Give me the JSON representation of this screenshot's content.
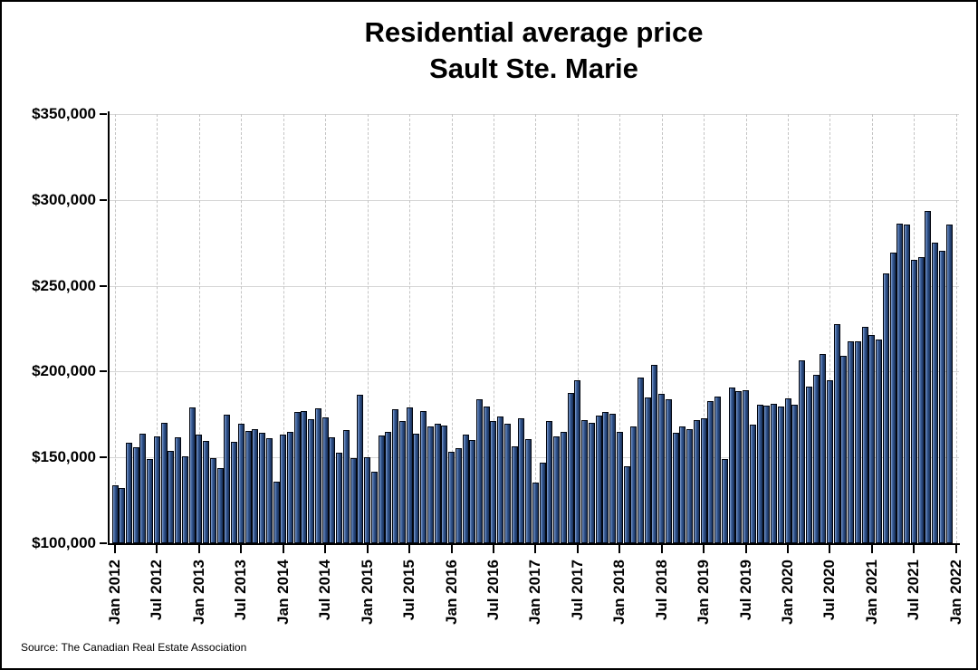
{
  "page": {
    "background": "#ffffff",
    "border_color": "#000000"
  },
  "title": {
    "line1": "Residential average price",
    "line2": "Sault Ste. Marie"
  },
  "source": "Source: The Canadian Real Estate Association",
  "chart_data": {
    "type": "bar",
    "title": "Residential average price — Sault Ste. Marie",
    "ylabel": "",
    "xlabel": "",
    "ylim": [
      100000,
      350000
    ],
    "ytick_step": 50000,
    "ytick_labels": [
      "$100,000",
      "$150,000",
      "$200,000",
      "$250,000",
      "$300,000",
      "$350,000"
    ],
    "xtick_labels": [
      "Jan 2012",
      "Jul 2012",
      "Jan 2013",
      "Jul 2013",
      "Jan 2014",
      "Jul 2014",
      "Jan 2015",
      "Jul 2015",
      "Jan 2016",
      "Jul 2016",
      "Jan 2017",
      "Jul 2017",
      "Jan 2018",
      "Jul 2018",
      "Jan 2019",
      "Jul 2019",
      "Jan 2020",
      "Jul 2020",
      "Jan 2021",
      "Jul 2021",
      "Jan 2022"
    ],
    "xtick_every_months": 6,
    "grid": {
      "horizontal": "solid-light-gray",
      "vertical": "dashed-light-gray"
    },
    "legend_position": "none",
    "bar_color": "#2c4a7e",
    "bar_edge_color": "#000000",
    "x": [
      "Jan 2012",
      "Feb 2012",
      "Mar 2012",
      "Apr 2012",
      "May 2012",
      "Jun 2012",
      "Jul 2012",
      "Aug 2012",
      "Sep 2012",
      "Oct 2012",
      "Nov 2012",
      "Dec 2012",
      "Jan 2013",
      "Feb 2013",
      "Mar 2013",
      "Apr 2013",
      "May 2013",
      "Jun 2013",
      "Jul 2013",
      "Aug 2013",
      "Sep 2013",
      "Oct 2013",
      "Nov 2013",
      "Dec 2013",
      "Jan 2014",
      "Feb 2014",
      "Mar 2014",
      "Apr 2014",
      "May 2014",
      "Jun 2014",
      "Jul 2014",
      "Aug 2014",
      "Sep 2014",
      "Oct 2014",
      "Nov 2014",
      "Dec 2014",
      "Jan 2015",
      "Feb 2015",
      "Mar 2015",
      "Apr 2015",
      "May 2015",
      "Jun 2015",
      "Jul 2015",
      "Aug 2015",
      "Sep 2015",
      "Oct 2015",
      "Nov 2015",
      "Dec 2015",
      "Jan 2016",
      "Feb 2016",
      "Mar 2016",
      "Apr 2016",
      "May 2016",
      "Jun 2016",
      "Jul 2016",
      "Aug 2016",
      "Sep 2016",
      "Oct 2016",
      "Nov 2016",
      "Dec 2016",
      "Jan 2017",
      "Feb 2017",
      "Mar 2017",
      "Apr 2017",
      "May 2017",
      "Jun 2017",
      "Jul 2017",
      "Aug 2017",
      "Sep 2017",
      "Oct 2017",
      "Nov 2017",
      "Dec 2017",
      "Jan 2018",
      "Feb 2018",
      "Mar 2018",
      "Apr 2018",
      "May 2018",
      "Jun 2018",
      "Jul 2018",
      "Aug 2018",
      "Sep 2018",
      "Oct 2018",
      "Nov 2018",
      "Dec 2018",
      "Jan 2019",
      "Feb 2019",
      "Mar 2019",
      "Apr 2019",
      "May 2019",
      "Jun 2019",
      "Jul 2019",
      "Aug 2019",
      "Sep 2019",
      "Oct 2019",
      "Nov 2019",
      "Dec 2019",
      "Jan 2020",
      "Feb 2020",
      "Mar 2020",
      "Apr 2020",
      "May 2020",
      "Jun 2020",
      "Jul 2020",
      "Aug 2020",
      "Sep 2020",
      "Oct 2020",
      "Nov 2020",
      "Dec 2020",
      "Jan 2021",
      "Feb 2021",
      "Mar 2021",
      "Apr 2021",
      "May 2021",
      "Jun 2021",
      "Jul 2021",
      "Aug 2021",
      "Sep 2021",
      "Oct 2021",
      "Nov 2021",
      "Dec 2021"
    ],
    "values": [
      133700,
      132000,
      158400,
      155800,
      164000,
      149000,
      162500,
      170000,
      153700,
      161600,
      150400,
      179300,
      163300,
      159500,
      149500,
      143700,
      174900,
      159300,
      169600,
      165300,
      166500,
      164600,
      161400,
      135800,
      163200,
      165100,
      176700,
      176800,
      172500,
      178800,
      173500,
      161900,
      152800,
      166000,
      149500,
      186500,
      150000,
      141600,
      162600,
      164700,
      178200,
      171200,
      179100,
      163900,
      176800,
      168100,
      169500,
      168600,
      153300,
      155200,
      163400,
      160000,
      183600,
      179400,
      171200,
      174000,
      169500,
      156200,
      172900,
      160500,
      135300,
      146800,
      171400,
      162500,
      164700,
      187500,
      194900,
      171800,
      170000,
      174200,
      176700,
      175300,
      164700,
      144600,
      168200,
      196500,
      185100,
      203900,
      187000,
      184000,
      164400,
      167900,
      166500,
      171600,
      172600,
      182800,
      185300,
      149300,
      190500,
      188400,
      189300,
      169100,
      180500,
      180200,
      181400,
      179500,
      184600,
      180500,
      206600,
      191200,
      197900,
      210000,
      195100,
      227900,
      209000,
      217700,
      217400,
      225800,
      221200,
      218800,
      257200,
      269300,
      286100,
      285600,
      265300,
      266500,
      293700,
      274900,
      270500,
      285400
    ]
  }
}
